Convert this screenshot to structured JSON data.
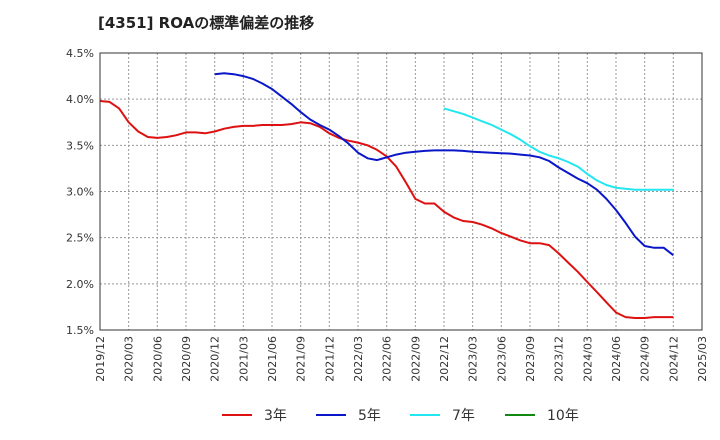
{
  "chart_data": {
    "type": "line",
    "title": "[4351]  ROAの標準偏差の推移",
    "xlabel": "",
    "ylabel": "",
    "ylim": [
      1.5,
      4.5
    ],
    "yticks": [
      "4.5%",
      "4.0%",
      "3.5%",
      "3.0%",
      "2.5%",
      "2.0%",
      "1.5%"
    ],
    "ytick_values": [
      4.5,
      4.0,
      3.5,
      3.0,
      2.5,
      2.0,
      1.5
    ],
    "xticks": [
      "2019/12",
      "2020/03",
      "2020/06",
      "2020/09",
      "2020/12",
      "2021/03",
      "2021/06",
      "2021/09",
      "2021/12",
      "2022/03",
      "2022/06",
      "2022/09",
      "2022/12",
      "2023/03",
      "2023/06",
      "2023/09",
      "2023/12",
      "2024/03",
      "2024/06",
      "2024/09",
      "2024/12",
      "2025/03"
    ],
    "grid": true,
    "legend_position": "bottom",
    "colors": {
      "3年": "#dd1111",
      "5年": "#0a17c8",
      "7年": "#22e6f0",
      "10年": "#118811"
    },
    "series": [
      {
        "name": "3年",
        "x": [
          "2019/12",
          "2020/01",
          "2020/02",
          "2020/03",
          "2020/04",
          "2020/05",
          "2020/06",
          "2020/07",
          "2020/08",
          "2020/09",
          "2020/10",
          "2020/11",
          "2020/12",
          "2021/01",
          "2021/02",
          "2021/03",
          "2021/04",
          "2021/05",
          "2021/06",
          "2021/07",
          "2021/08",
          "2021/09",
          "2021/10",
          "2021/11",
          "2021/12",
          "2022/01",
          "2022/02",
          "2022/03",
          "2022/04",
          "2022/05",
          "2022/06",
          "2022/07",
          "2022/08",
          "2022/09",
          "2022/10",
          "2022/11",
          "2022/12",
          "2023/01",
          "2023/02",
          "2023/03",
          "2023/04",
          "2023/05",
          "2023/06",
          "2023/07",
          "2023/08",
          "2023/09",
          "2023/10",
          "2023/11",
          "2023/12",
          "2024/01",
          "2024/02",
          "2024/03",
          "2024/04",
          "2024/05",
          "2024/06",
          "2024/07",
          "2024/08",
          "2024/09",
          "2024/10",
          "2024/11",
          "2024/12"
        ],
        "values": [
          3.98,
          3.97,
          3.9,
          3.75,
          3.65,
          3.59,
          3.58,
          3.59,
          3.61,
          3.64,
          3.64,
          3.63,
          3.65,
          3.68,
          3.7,
          3.71,
          3.71,
          3.72,
          3.72,
          3.72,
          3.73,
          3.75,
          3.74,
          3.7,
          3.63,
          3.58,
          3.55,
          3.53,
          3.5,
          3.45,
          3.38,
          3.27,
          3.1,
          2.92,
          2.87,
          2.87,
          2.78,
          2.72,
          2.68,
          2.67,
          2.64,
          2.6,
          2.55,
          2.51,
          2.47,
          2.44,
          2.44,
          2.42,
          2.33,
          2.23,
          2.13,
          2.02,
          1.91,
          1.8,
          1.69,
          1.64,
          1.63,
          1.63,
          1.64,
          1.64,
          1.64
        ]
      },
      {
        "name": "5年",
        "x": [
          "2020/12",
          "2021/01",
          "2021/02",
          "2021/03",
          "2021/04",
          "2021/05",
          "2021/06",
          "2021/07",
          "2021/08",
          "2021/09",
          "2021/10",
          "2021/11",
          "2021/12",
          "2022/01",
          "2022/02",
          "2022/03",
          "2022/04",
          "2022/05",
          "2022/06",
          "2022/07",
          "2022/08",
          "2022/09",
          "2022/10",
          "2022/11",
          "2022/12",
          "2023/01",
          "2023/02",
          "2023/03",
          "2023/04",
          "2023/05",
          "2023/06",
          "2023/07",
          "2023/08",
          "2023/09",
          "2023/10",
          "2023/11",
          "2023/12",
          "2024/01",
          "2024/02",
          "2024/03",
          "2024/04",
          "2024/05",
          "2024/06",
          "2024/07",
          "2024/08",
          "2024/09",
          "2024/10",
          "2024/11",
          "2024/12"
        ],
        "values": [
          4.27,
          4.28,
          4.27,
          4.25,
          4.22,
          4.17,
          4.11,
          4.03,
          3.95,
          3.86,
          3.78,
          3.72,
          3.67,
          3.6,
          3.52,
          3.42,
          3.36,
          3.34,
          3.37,
          3.4,
          3.42,
          3.43,
          3.44,
          3.445,
          3.445,
          3.445,
          3.44,
          3.43,
          3.425,
          3.42,
          3.415,
          3.41,
          3.4,
          3.39,
          3.37,
          3.33,
          3.26,
          3.2,
          3.14,
          3.09,
          3.02,
          2.92,
          2.8,
          2.66,
          2.51,
          2.41,
          2.39,
          2.39,
          2.31
        ]
      },
      {
        "name": "7年",
        "x": [
          "2022/12",
          "2023/01",
          "2023/02",
          "2023/03",
          "2023/04",
          "2023/05",
          "2023/06",
          "2023/07",
          "2023/08",
          "2023/09",
          "2023/10",
          "2023/11",
          "2023/12",
          "2024/01",
          "2024/02",
          "2024/03",
          "2024/04",
          "2024/05",
          "2024/06",
          "2024/07",
          "2024/08",
          "2024/09",
          "2024/10",
          "2024/11",
          "2024/12"
        ],
        "values": [
          3.9,
          3.87,
          3.84,
          3.8,
          3.76,
          3.72,
          3.67,
          3.62,
          3.56,
          3.49,
          3.43,
          3.39,
          3.36,
          3.32,
          3.27,
          3.19,
          3.12,
          3.07,
          3.04,
          3.03,
          3.02,
          3.02,
          3.02,
          3.02,
          3.02
        ]
      },
      {
        "name": "10年",
        "x": [],
        "values": []
      }
    ]
  }
}
